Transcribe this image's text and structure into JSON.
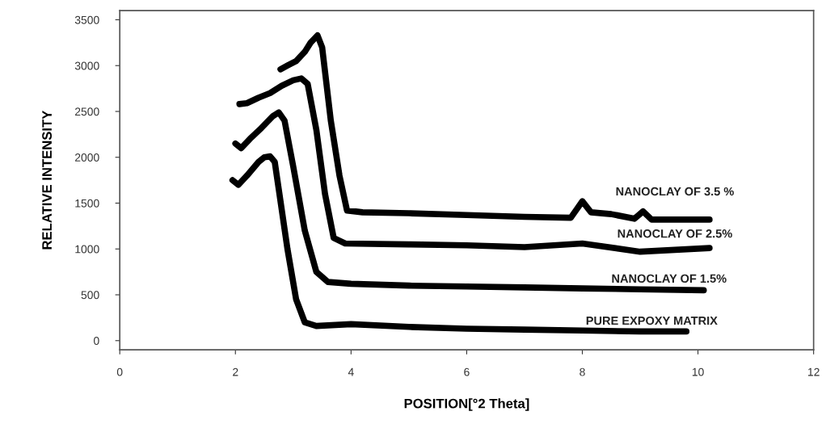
{
  "chart_data": {
    "type": "line",
    "xlabel": "POSITION[°2 Theta]",
    "ylabel": "RELATIVE INTENSITY",
    "xlim": [
      0,
      12
    ],
    "xticks": [
      0,
      2,
      4,
      6,
      8,
      10,
      12
    ],
    "ylim": [
      -100,
      3600
    ],
    "yticks": [
      0,
      500,
      1000,
      1500,
      2000,
      2500,
      3000,
      3500
    ],
    "grid": false,
    "legend": false,
    "marker": "none",
    "line_style": "solid",
    "series": [
      {
        "name": "PURE EXPOXY MATRIX",
        "color": "#000000",
        "x": [
          1.95,
          2.05,
          2.2,
          2.4,
          2.5,
          2.6,
          2.68,
          2.75,
          2.9,
          3.05,
          3.2,
          3.4,
          4.0,
          5.0,
          6.0,
          7.0,
          8.0,
          9.0,
          9.8
        ],
        "values": [
          1750,
          1700,
          1800,
          1950,
          2000,
          2010,
          1950,
          1650,
          1000,
          450,
          200,
          160,
          180,
          150,
          130,
          120,
          110,
          100,
          100
        ]
      },
      {
        "name": "NANOCLAY OF 1.5%",
        "color": "#000000",
        "x": [
          2.0,
          2.1,
          2.25,
          2.45,
          2.65,
          2.75,
          2.85,
          3.0,
          3.2,
          3.4,
          3.6,
          4.0,
          5.0,
          6.0,
          7.0,
          8.0,
          9.0,
          10.1
        ],
        "values": [
          2150,
          2100,
          2200,
          2320,
          2450,
          2490,
          2400,
          1900,
          1200,
          750,
          640,
          620,
          600,
          590,
          580,
          570,
          560,
          550
        ]
      },
      {
        "name": "NANOCLAY OF 2.5%",
        "color": "#000000",
        "x": [
          2.07,
          2.2,
          2.4,
          2.6,
          2.8,
          3.0,
          3.14,
          3.25,
          3.4,
          3.55,
          3.7,
          3.9,
          5.0,
          6.0,
          7.0,
          8.0,
          9.0,
          10.2
        ],
        "values": [
          2580,
          2590,
          2650,
          2700,
          2780,
          2840,
          2860,
          2800,
          2300,
          1600,
          1120,
          1060,
          1050,
          1040,
          1020,
          1060,
          970,
          1010
        ]
      },
      {
        "name": "NANOCLAY OF 3.5 %",
        "color": "#000000",
        "x": [
          2.78,
          2.9,
          3.05,
          3.2,
          3.3,
          3.42,
          3.5,
          3.65,
          3.8,
          3.93,
          4.2,
          5.0,
          6.0,
          7.0,
          7.8,
          8.0,
          8.15,
          8.5,
          8.9,
          9.05,
          9.2,
          9.6,
          10.2
        ],
        "values": [
          2960,
          3000,
          3050,
          3150,
          3250,
          3330,
          3200,
          2400,
          1800,
          1420,
          1400,
          1390,
          1370,
          1350,
          1340,
          1520,
          1400,
          1380,
          1330,
          1410,
          1320,
          1320,
          1320
        ]
      }
    ]
  }
}
